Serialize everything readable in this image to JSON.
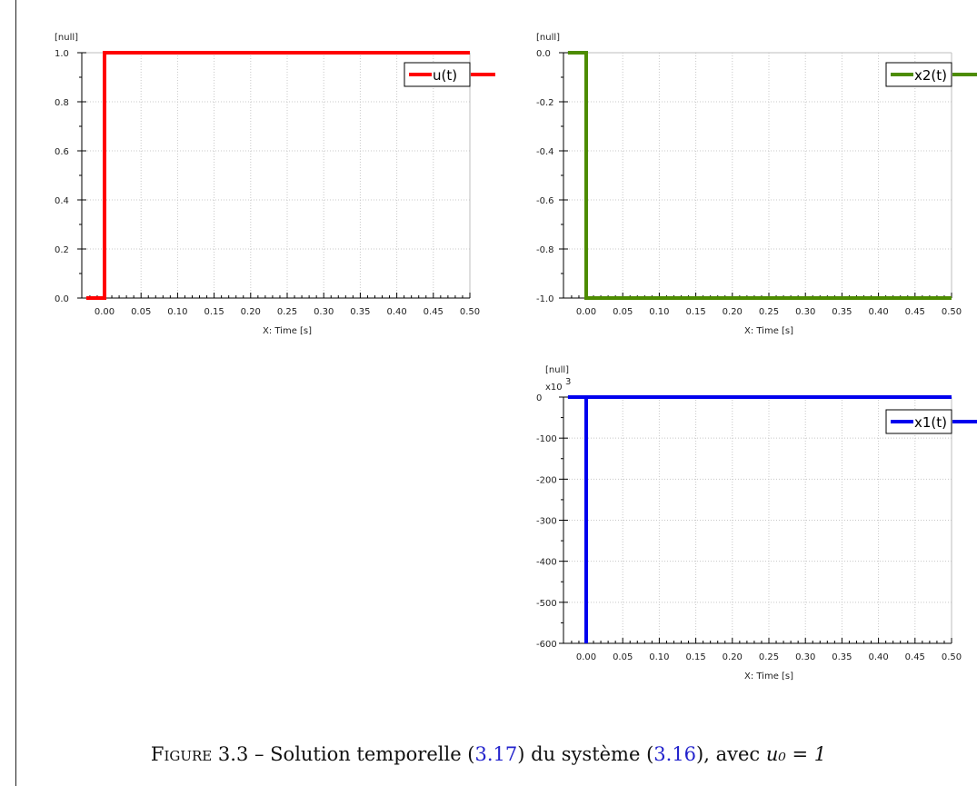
{
  "chart_data": [
    {
      "type": "line",
      "ylabel": "[null]",
      "xlabel": "X: Time [s]",
      "x_ticks": [
        "0.00",
        "0.05",
        "0.10",
        "0.15",
        "0.20",
        "0.25",
        "0.30",
        "0.35",
        "0.40",
        "0.45",
        "0.50"
      ],
      "y_ticks": [
        "0.0",
        "0.2",
        "0.4",
        "0.6",
        "0.8",
        "1.0"
      ],
      "xlim": [
        -0.025,
        0.5
      ],
      "ylim": [
        0,
        1
      ],
      "grid": true,
      "legend_position": "top-right",
      "series": [
        {
          "name": "u(t)",
          "color": "#ff0000",
          "x": [
            -0.025,
            0.0,
            0.0,
            0.5
          ],
          "y": [
            0,
            0,
            1,
            1
          ]
        }
      ]
    },
    {
      "type": "line",
      "ylabel": "[null]",
      "xlabel": "X: Time [s]",
      "x_ticks": [
        "0.00",
        "0.05",
        "0.10",
        "0.15",
        "0.20",
        "0.25",
        "0.30",
        "0.35",
        "0.40",
        "0.45",
        "0.50"
      ],
      "y_ticks": [
        "0.0",
        "-0.2",
        "-0.4",
        "-0.6",
        "-0.8",
        "-1.0"
      ],
      "xlim": [
        -0.025,
        0.5
      ],
      "ylim": [
        -1,
        0
      ],
      "grid": true,
      "legend_position": "top-right",
      "series": [
        {
          "name": "x2(t)",
          "color": "#4d8c00",
          "x": [
            -0.025,
            0.0,
            0.0,
            0.5
          ],
          "y": [
            0,
            0,
            -1,
            -1
          ]
        }
      ]
    },
    {
      "type": "line",
      "ylabel": "[null]",
      "y_multiplier": "x10",
      "y_multiplier_exp": "3",
      "xlabel": "X: Time [s]",
      "x_ticks": [
        "0.00",
        "0.05",
        "0.10",
        "0.15",
        "0.20",
        "0.25",
        "0.30",
        "0.35",
        "0.40",
        "0.45",
        "0.50"
      ],
      "y_ticks": [
        "0",
        "-100",
        "-200",
        "-300",
        "-400",
        "-500",
        "-600"
      ],
      "xlim": [
        -0.025,
        0.5
      ],
      "ylim": [
        -600,
        0
      ],
      "grid": true,
      "legend_position": "top-right",
      "series": [
        {
          "name": "x1(t)",
          "color": "#0000ee",
          "x": [
            -0.025,
            0.0,
            0.0,
            0.0,
            0.5
          ],
          "y": [
            0,
            0,
            -600,
            0,
            0
          ]
        }
      ]
    }
  ],
  "caption": {
    "prefix": "Figure 3.3",
    "dash": " – Solution temporelle (",
    "ref1": "3.17",
    "mid": ") du système (",
    "ref2": "3.16",
    "end": "), avec ",
    "math": "u₀ = 1"
  }
}
